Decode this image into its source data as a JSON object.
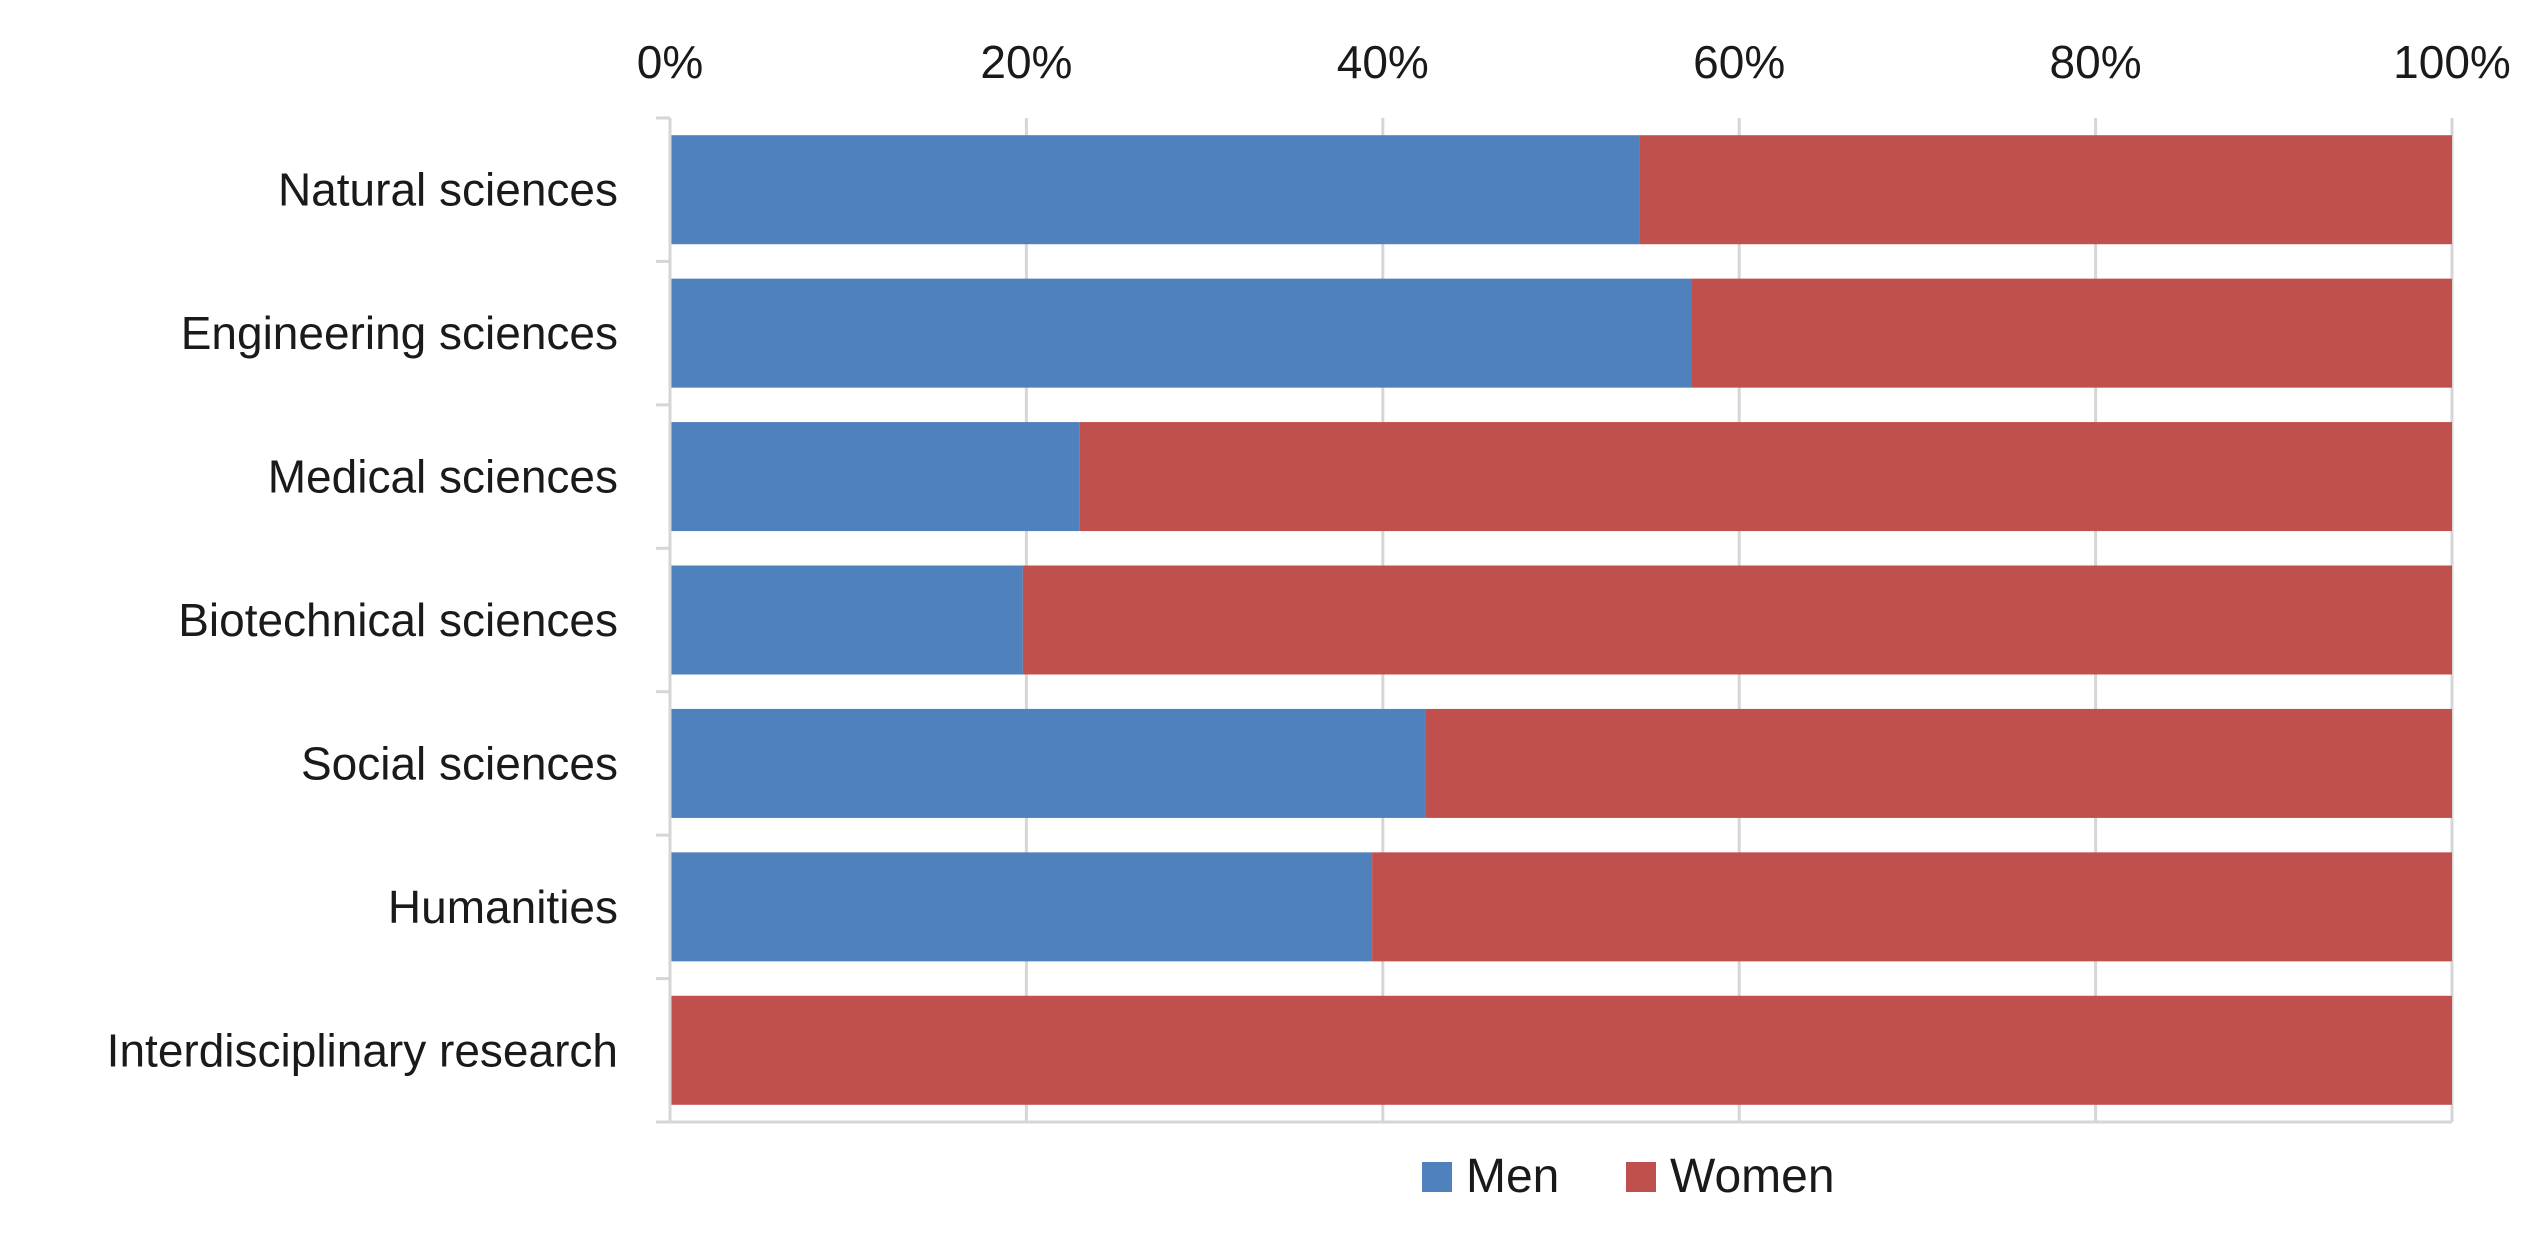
{
  "chart_data": {
    "type": "bar",
    "orientation": "horizontal",
    "stacked": "percent",
    "categories": [
      "Natural sciences",
      "Engineering sciences",
      "Medical sciences",
      "Biotechnical sciences",
      "Social sciences",
      "Humanities",
      "Interdisciplinary research"
    ],
    "series": [
      {
        "name": "Men",
        "color": "#4F81BD",
        "values": [
          54.4,
          57.3,
          23.0,
          19.8,
          42.4,
          39.4,
          0.0
        ]
      },
      {
        "name": "Women",
        "color": "#C0504D",
        "values": [
          45.6,
          42.7,
          77.0,
          80.2,
          57.6,
          60.6,
          100.0
        ]
      }
    ],
    "x_ticks": [
      "0%",
      "20%",
      "40%",
      "60%",
      "80%",
      "100%"
    ],
    "xlim": [
      0,
      100
    ],
    "x_axis_position": "top",
    "grid": true,
    "legend_position": "bottom",
    "title": "",
    "xlabel": "",
    "ylabel": ""
  }
}
